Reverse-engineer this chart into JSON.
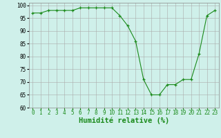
{
  "x": [
    0,
    1,
    2,
    3,
    4,
    5,
    6,
    7,
    8,
    9,
    10,
    11,
    12,
    13,
    14,
    15,
    16,
    17,
    18,
    19,
    20,
    21,
    22,
    23
  ],
  "y": [
    97,
    97,
    98,
    98,
    98,
    98,
    99,
    99,
    99,
    99,
    99,
    96,
    92,
    86,
    71,
    65,
    65,
    69,
    69,
    71,
    71,
    81,
    96,
    98
  ],
  "line_color": "#1a8a1a",
  "marker_color": "#1a8a1a",
  "bg_color": "#cff0ea",
  "grid_color": "#aaaaaa",
  "xlabel": "Humidité relative (%)",
  "xlabel_color": "#1a8a1a",
  "ylim": [
    60,
    101
  ],
  "yticks": [
    60,
    65,
    70,
    75,
    80,
    85,
    90,
    95,
    100
  ],
  "xticks": [
    0,
    1,
    2,
    3,
    4,
    5,
    6,
    7,
    8,
    9,
    10,
    11,
    12,
    13,
    14,
    15,
    16,
    17,
    18,
    19,
    20,
    21,
    22,
    23
  ],
  "tick_fontsize": 5.5,
  "xlabel_fontsize": 7.5
}
